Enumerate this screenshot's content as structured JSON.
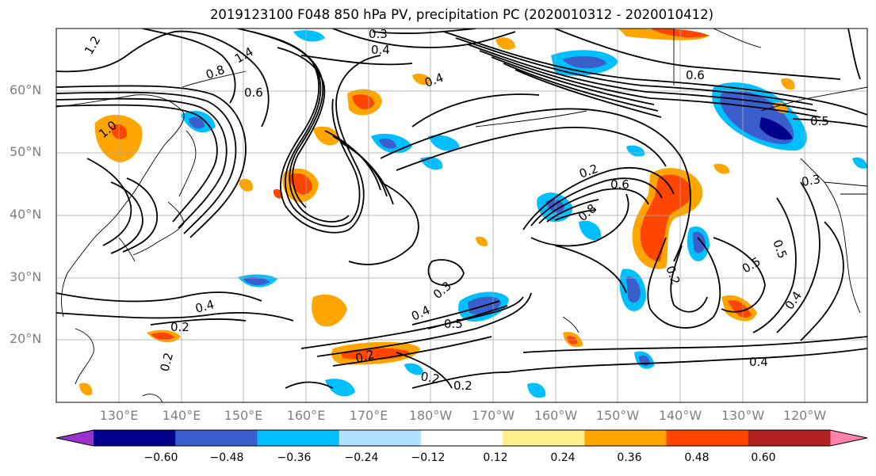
{
  "title": "2019123100 F048 850 hPa PV, precipitation PC (2020010312 - 2020010412)",
  "lat_labels": [
    "60°N",
    "50°N",
    "40°N",
    "30°N",
    "20°N"
  ],
  "lon_labels": [
    "130°E",
    "140°E",
    "150°E",
    "160°E",
    "170°E",
    "180°W",
    "170°W",
    "160°W",
    "150°W",
    "140°W",
    "130°W",
    "120°W"
  ],
  "colorbar": {
    "colors": [
      "#9932cc",
      "#00008b",
      "#3a5fcd",
      "#00bfff",
      "#b0e2ff",
      "#ffffff",
      "#ffec8b",
      "#ffa500",
      "#ff4500",
      "#b22222",
      "#ff82ab"
    ],
    "ticks": [
      "−0.60",
      "−0.48",
      "−0.36",
      "−0.24",
      "−0.12",
      "0.12",
      "0.24",
      "0.36",
      "0.48",
      "0.60"
    ]
  },
  "contour_labels": [
    "0.3",
    "0.4",
    "1.4",
    "1.2",
    "0.8",
    "0.6",
    "1.0",
    "0.4",
    "0.6",
    "0.5",
    "0.2",
    "0.6",
    "0.8",
    "0.2",
    "0.5",
    "0.3",
    "0.5",
    "0.4",
    "0.3",
    "0.4",
    "0.5",
    "0.4",
    "0.2",
    "0.2",
    "0.2",
    "0.2",
    "0.4",
    "0.2"
  ]
}
